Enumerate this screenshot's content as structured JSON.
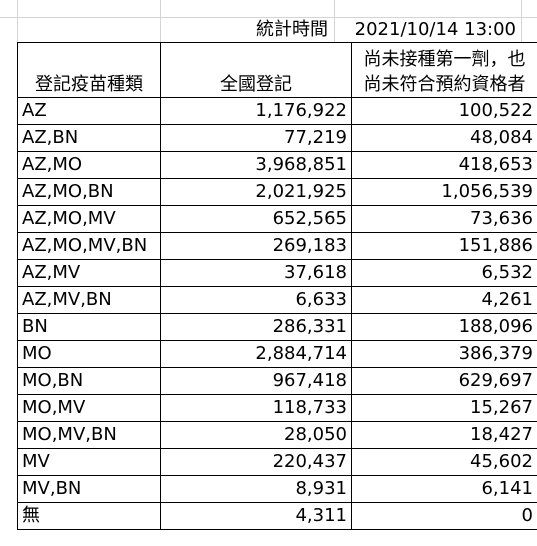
{
  "header": {
    "stat_time_label": "統計時間",
    "stat_time_value": "2021/10/14 13:00"
  },
  "columns": {
    "type": "登記疫苗種類",
    "registered": "全國登記",
    "not_yet_line1": "尚未接種第一劑，也",
    "not_yet_line2": "尚未符合預約資格者"
  },
  "rows": [
    {
      "type": "AZ",
      "registered": "1,176,922",
      "not_yet": "100,522"
    },
    {
      "type": "AZ,BN",
      "registered": "77,219",
      "not_yet": "48,084"
    },
    {
      "type": "AZ,MO",
      "registered": "3,968,851",
      "not_yet": "418,653"
    },
    {
      "type": "AZ,MO,BN",
      "registered": "2,021,925",
      "not_yet": "1,056,539"
    },
    {
      "type": "AZ,MO,MV",
      "registered": "652,565",
      "not_yet": "73,636"
    },
    {
      "type": "AZ,MO,MV,BN",
      "registered": "269,183",
      "not_yet": "151,886"
    },
    {
      "type": "AZ,MV",
      "registered": "37,618",
      "not_yet": "6,532"
    },
    {
      "type": "AZ,MV,BN",
      "registered": "6,633",
      "not_yet": "4,261"
    },
    {
      "type": "BN",
      "registered": "286,331",
      "not_yet": "188,096"
    },
    {
      "type": "MO",
      "registered": "2,884,714",
      "not_yet": "386,379"
    },
    {
      "type": "MO,BN",
      "registered": "967,418",
      "not_yet": "629,697"
    },
    {
      "type": "MO,MV",
      "registered": "118,733",
      "not_yet": "15,267"
    },
    {
      "type": "MO,MV,BN",
      "registered": "28,050",
      "not_yet": "18,427"
    },
    {
      "type": "MV",
      "registered": "220,437",
      "not_yet": "45,602"
    },
    {
      "type": "MV,BN",
      "registered": "8,931",
      "not_yet": "6,141"
    },
    {
      "type": "無",
      "registered": "4,311",
      "not_yet": "0"
    }
  ]
}
